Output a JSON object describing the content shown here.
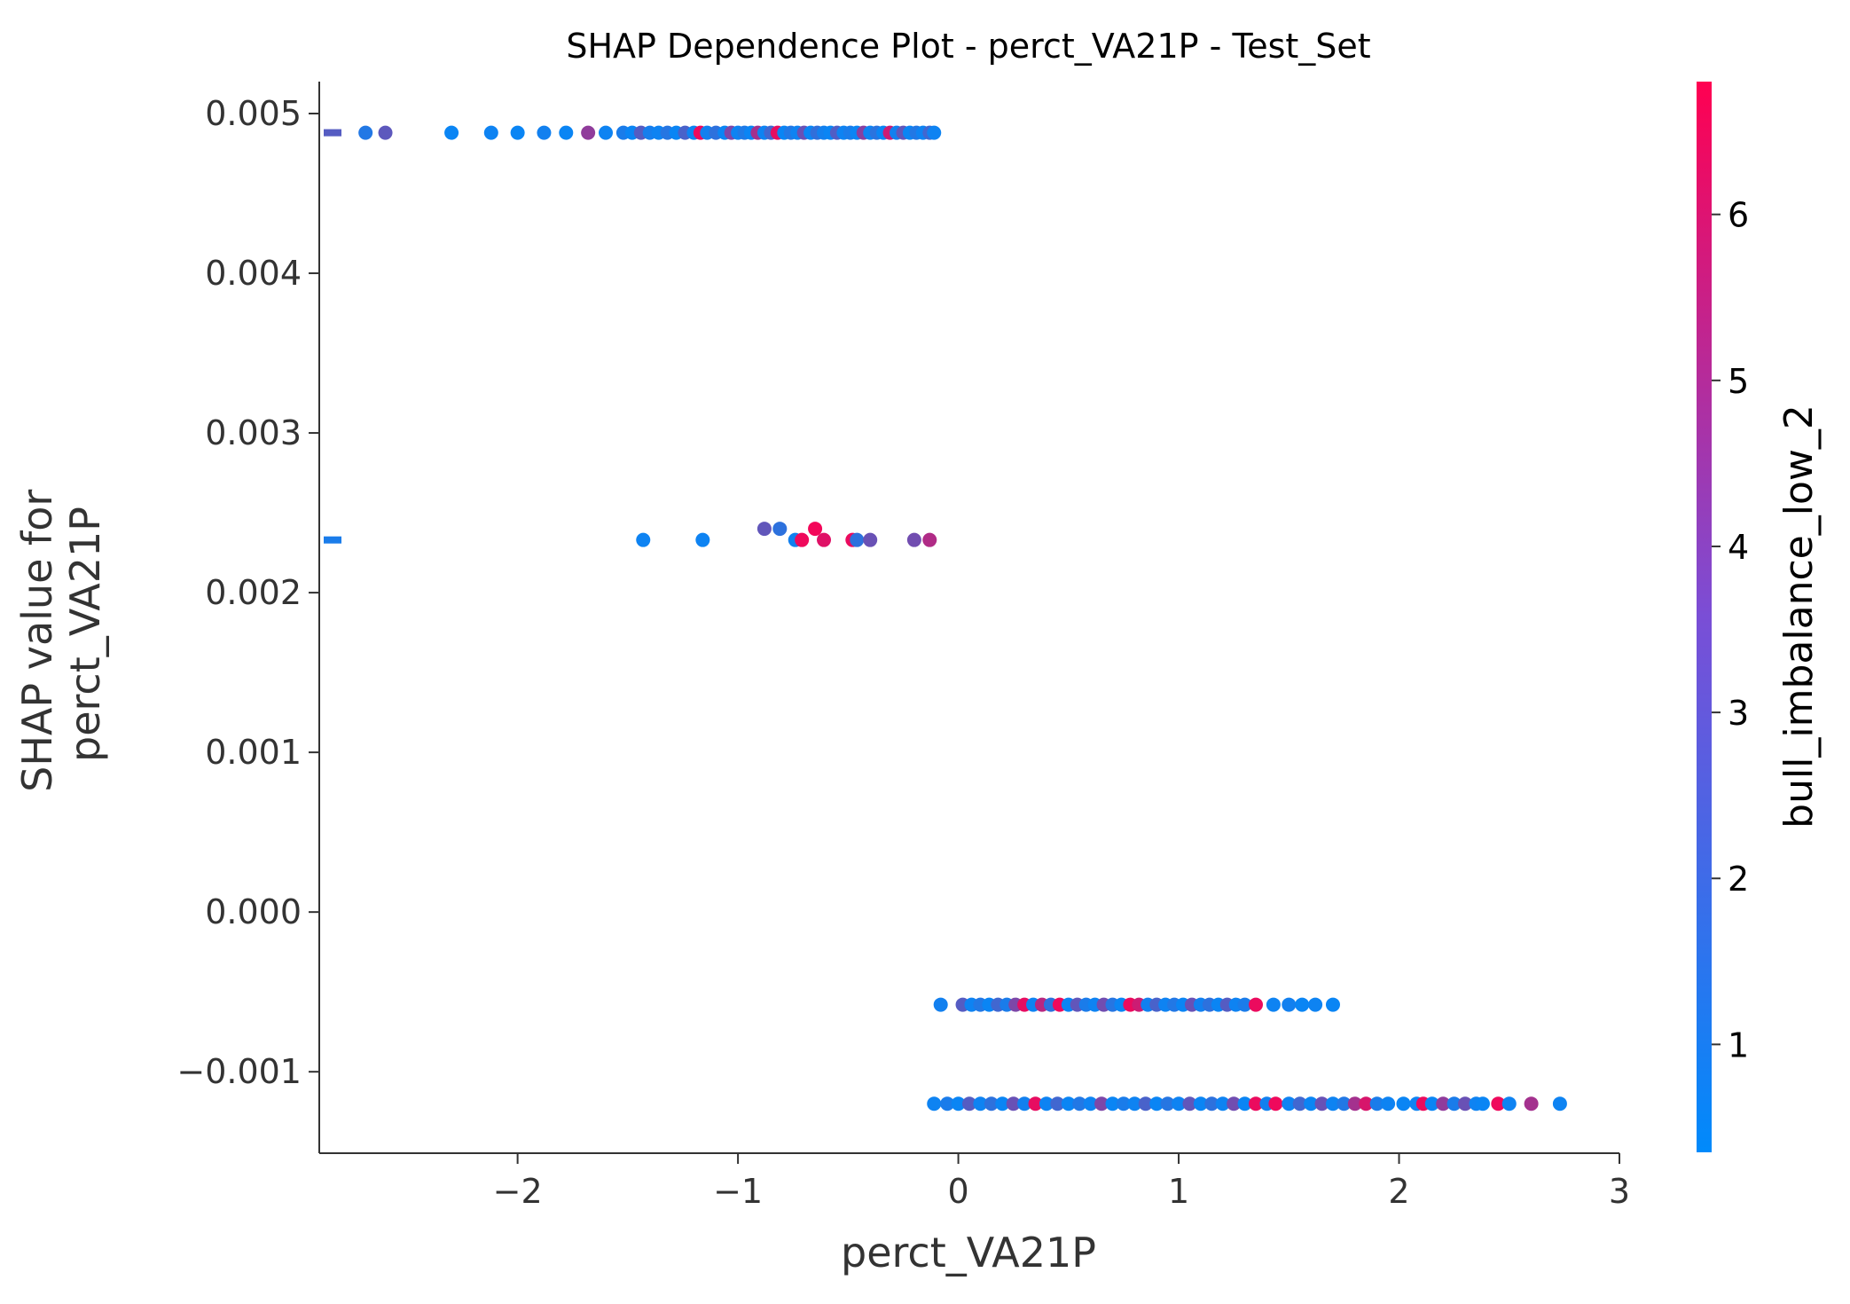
{
  "chart_data": {
    "type": "scatter",
    "title": "SHAP Dependence Plot - perct_VA21P - Test_Set",
    "xlabel": "perct_VA21P",
    "ylabel_lines": [
      "SHAP value for",
      "perct_VA21P"
    ],
    "xlim": [
      -2.9,
      3.0
    ],
    "ylim": [
      -0.00151,
      0.0052
    ],
    "x_ticks": [
      -2,
      -1,
      0,
      1,
      2,
      3
    ],
    "x_tick_labels": [
      "−2",
      "−1",
      "0",
      "1",
      "2",
      "3"
    ],
    "y_ticks": [
      0.005,
      0.004,
      0.003,
      0.002,
      0.001,
      0.0,
      -0.001
    ],
    "y_tick_labels": [
      "0.005",
      "0.004",
      "0.003",
      "0.002",
      "0.001",
      "0.000",
      "−0.001"
    ],
    "grid": false,
    "colorbar": {
      "label": "bull_imbalance_low_2",
      "range": [
        0.35,
        6.8
      ],
      "ticks": [
        1,
        2,
        3,
        4,
        5,
        6
      ],
      "tick_labels": [
        "1",
        "2",
        "3",
        "4",
        "5",
        "6"
      ],
      "colors": [
        "#008afb",
        "#ff0051"
      ]
    },
    "nan_markers": [
      {
        "y": 0.00488,
        "color_value": 2.5
      },
      {
        "y": 0.00233,
        "color_value": 1.0
      }
    ],
    "series": [
      {
        "y": 0.00488,
        "points": [
          [
            -2.69,
            1.2
          ],
          [
            -2.6,
            2.7
          ],
          [
            -2.3,
            0.6
          ],
          [
            -2.12,
            0.7
          ],
          [
            -2.0,
            0.6
          ],
          [
            -1.88,
            0.8
          ],
          [
            -1.78,
            0.6
          ],
          [
            -1.68,
            4.0
          ],
          [
            -1.6,
            0.7
          ],
          [
            -1.52,
            1.0
          ],
          [
            -1.48,
            0.6
          ],
          [
            -1.44,
            2.5
          ],
          [
            -1.4,
            0.9
          ],
          [
            -1.36,
            0.7
          ],
          [
            -1.32,
            1.3
          ],
          [
            -1.28,
            0.6
          ],
          [
            -1.24,
            2.2
          ],
          [
            -1.2,
            0.7
          ],
          [
            -1.17,
            6.4
          ],
          [
            -1.14,
            0.8
          ],
          [
            -1.1,
            1.5
          ],
          [
            -1.06,
            0.6
          ],
          [
            -1.03,
            3.5
          ],
          [
            -1.0,
            0.7
          ],
          [
            -0.97,
            1.1
          ],
          [
            -0.94,
            0.6
          ],
          [
            -0.91,
            4.5
          ],
          [
            -0.88,
            0.7
          ],
          [
            -0.85,
            2.0
          ],
          [
            -0.82,
            6.2
          ],
          [
            -0.79,
            0.6
          ],
          [
            -0.76,
            1.2
          ],
          [
            -0.73,
            0.7
          ],
          [
            -0.7,
            3.0
          ],
          [
            -0.67,
            0.6
          ],
          [
            -0.64,
            1.6
          ],
          [
            -0.61,
            0.8
          ],
          [
            -0.58,
            0.6
          ],
          [
            -0.55,
            2.4
          ],
          [
            -0.52,
            0.7
          ],
          [
            -0.49,
            1.0
          ],
          [
            -0.46,
            0.6
          ],
          [
            -0.43,
            3.8
          ],
          [
            -0.4,
            0.7
          ],
          [
            -0.37,
            1.4
          ],
          [
            -0.34,
            0.6
          ],
          [
            -0.31,
            5.5
          ],
          [
            -0.28,
            0.8
          ],
          [
            -0.25,
            2.8
          ],
          [
            -0.22,
            0.6
          ],
          [
            -0.19,
            1.2
          ],
          [
            -0.16,
            0.7
          ],
          [
            -0.13,
            2.0
          ],
          [
            -0.11,
            0.7
          ]
        ]
      },
      {
        "y": 0.00233,
        "points": [
          [
            -1.43,
            0.7
          ],
          [
            -1.16,
            0.7
          ],
          [
            -0.74,
            0.8
          ],
          [
            -0.71,
            6.4
          ],
          [
            -0.61,
            6.0
          ],
          [
            -0.48,
            6.3
          ],
          [
            -0.46,
            1.5
          ],
          [
            -0.4,
            3.0
          ],
          [
            -0.2,
            3.2
          ],
          [
            -0.13,
            4.8
          ]
        ]
      },
      {
        "y": 0.0024,
        "points": [
          [
            -0.88,
            2.8
          ],
          [
            -0.81,
            1.5
          ],
          [
            -0.65,
            6.5
          ]
        ]
      },
      {
        "y": -0.00058,
        "points": [
          [
            -0.08,
            0.8
          ],
          [
            0.02,
            2.5
          ],
          [
            0.06,
            0.7
          ],
          [
            0.1,
            1.2
          ],
          [
            0.14,
            0.6
          ],
          [
            0.18,
            2.0
          ],
          [
            0.22,
            1.0
          ],
          [
            0.26,
            3.5
          ],
          [
            0.3,
            6.2
          ],
          [
            0.34,
            0.7
          ],
          [
            0.38,
            5.0
          ],
          [
            0.42,
            1.5
          ],
          [
            0.46,
            6.4
          ],
          [
            0.5,
            0.6
          ],
          [
            0.54,
            2.8
          ],
          [
            0.58,
            1.0
          ],
          [
            0.62,
            0.7
          ],
          [
            0.66,
            3.2
          ],
          [
            0.7,
            1.3
          ],
          [
            0.74,
            0.6
          ],
          [
            0.78,
            6.3
          ],
          [
            0.82,
            5.5
          ],
          [
            0.86,
            0.8
          ],
          [
            0.9,
            2.2
          ],
          [
            0.94,
            0.7
          ],
          [
            0.98,
            1.2
          ],
          [
            1.02,
            0.6
          ],
          [
            1.06,
            3.0
          ],
          [
            1.1,
            0.8
          ],
          [
            1.14,
            1.5
          ],
          [
            1.18,
            0.6
          ],
          [
            1.22,
            2.5
          ],
          [
            1.26,
            0.7
          ],
          [
            1.3,
            1.0
          ],
          [
            1.35,
            6.3
          ],
          [
            1.43,
            0.7
          ],
          [
            1.5,
            0.8
          ],
          [
            1.56,
            0.6
          ],
          [
            1.62,
            0.7
          ],
          [
            1.7,
            0.6
          ]
        ]
      },
      {
        "y": -0.0012,
        "points": [
          [
            -0.11,
            0.7
          ],
          [
            -0.05,
            1.0
          ],
          [
            0.0,
            0.6
          ],
          [
            0.05,
            2.5
          ],
          [
            0.1,
            0.7
          ],
          [
            0.15,
            1.5
          ],
          [
            0.2,
            0.6
          ],
          [
            0.25,
            3.0
          ],
          [
            0.3,
            0.8
          ],
          [
            0.35,
            6.2
          ],
          [
            0.4,
            0.7
          ],
          [
            0.45,
            2.0
          ],
          [
            0.5,
            0.6
          ],
          [
            0.55,
            1.2
          ],
          [
            0.6,
            0.7
          ],
          [
            0.65,
            3.5
          ],
          [
            0.7,
            0.6
          ],
          [
            0.75,
            1.0
          ],
          [
            0.8,
            0.7
          ],
          [
            0.85,
            2.2
          ],
          [
            0.9,
            0.6
          ],
          [
            0.95,
            1.3
          ],
          [
            1.0,
            0.7
          ],
          [
            1.05,
            2.8
          ],
          [
            1.1,
            0.6
          ],
          [
            1.15,
            1.5
          ],
          [
            1.2,
            0.7
          ],
          [
            1.25,
            3.2
          ],
          [
            1.3,
            0.6
          ],
          [
            1.35,
            6.3
          ],
          [
            1.4,
            0.8
          ],
          [
            1.44,
            6.4
          ],
          [
            1.5,
            0.7
          ],
          [
            1.55,
            2.0
          ],
          [
            1.6,
            0.6
          ],
          [
            1.65,
            3.0
          ],
          [
            1.7,
            0.7
          ],
          [
            1.75,
            1.2
          ],
          [
            1.8,
            4.5
          ],
          [
            1.85,
            5.8
          ],
          [
            1.9,
            1.0
          ],
          [
            1.95,
            0.7
          ],
          [
            2.02,
            0.6
          ],
          [
            2.08,
            0.7
          ],
          [
            2.11,
            6.3
          ],
          [
            2.15,
            0.6
          ],
          [
            2.2,
            4.0
          ],
          [
            2.25,
            1.0
          ],
          [
            2.3,
            3.0
          ],
          [
            2.35,
            0.7
          ],
          [
            2.38,
            0.6
          ],
          [
            2.45,
            6.4
          ],
          [
            2.5,
            0.7
          ],
          [
            2.6,
            4.5
          ],
          [
            2.73,
            0.7
          ]
        ]
      }
    ]
  }
}
